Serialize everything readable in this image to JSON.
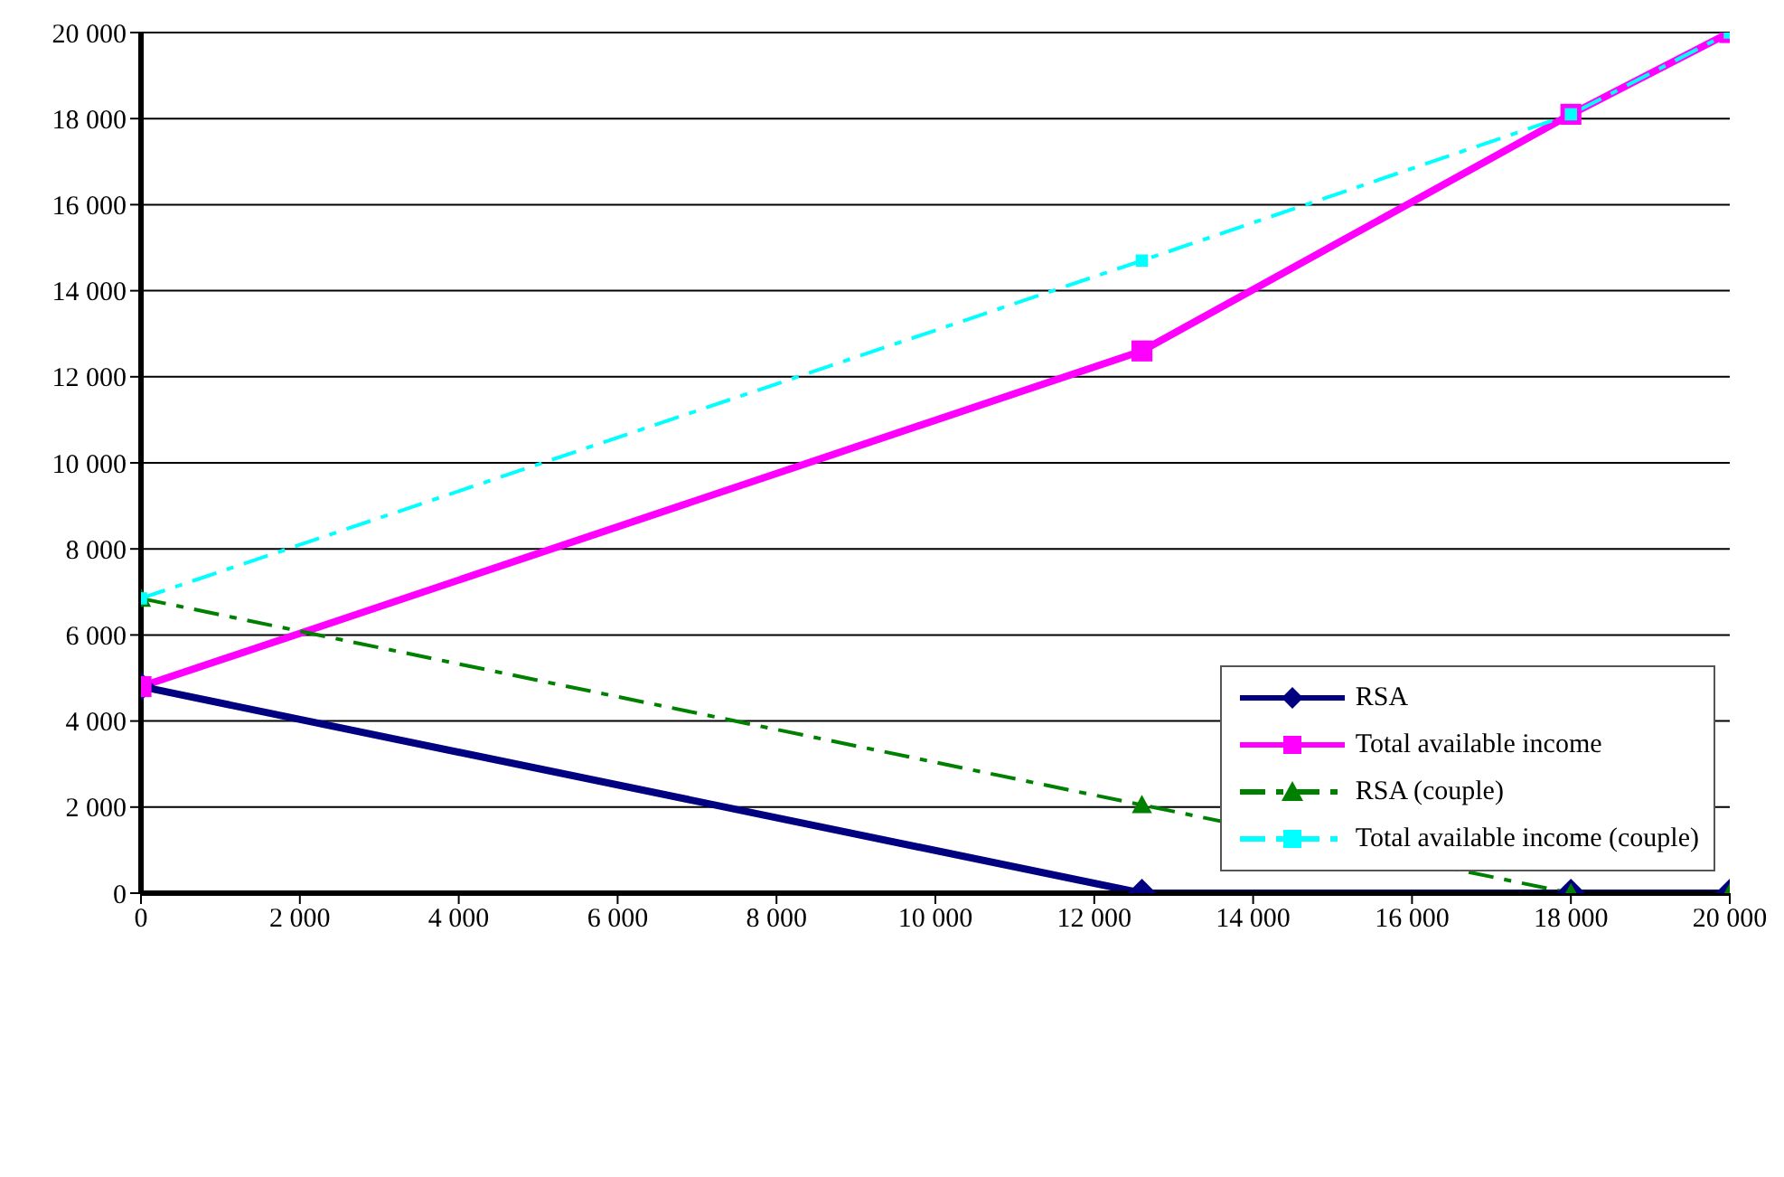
{
  "chart_data": {
    "type": "line",
    "x": [
      0,
      12600,
      18000,
      20000
    ],
    "series": [
      {
        "name": "RSA",
        "color": "#000080",
        "values": [
          4800,
          0,
          0,
          0
        ],
        "marker": "diamond",
        "line_style": "solid"
      },
      {
        "name": "Total available income",
        "color": "#ff00ff",
        "values": [
          4800,
          12600,
          18100,
          20000
        ],
        "marker": "square",
        "line_style": "solid"
      },
      {
        "name": "RSA (couple)",
        "color": "#008000",
        "values": [
          6850,
          2050,
          0,
          0
        ],
        "marker": "triangle",
        "line_style": "dashed"
      },
      {
        "name": "Total available income (couple)",
        "color": "#00ffff",
        "values": [
          6850,
          14700,
          18100,
          20000
        ],
        "marker": "square",
        "line_style": "dashed"
      }
    ],
    "xlim": [
      0,
      20000
    ],
    "xticks": [
      0,
      2000,
      4000,
      6000,
      8000,
      10000,
      12000,
      14000,
      16000,
      18000,
      20000
    ],
    "ylim": [
      0,
      20000
    ],
    "yticks": [
      0,
      2000,
      4000,
      6000,
      8000,
      10000,
      12000,
      14000,
      16000,
      18000,
      20000
    ],
    "grid": "y",
    "legend": "right"
  }
}
